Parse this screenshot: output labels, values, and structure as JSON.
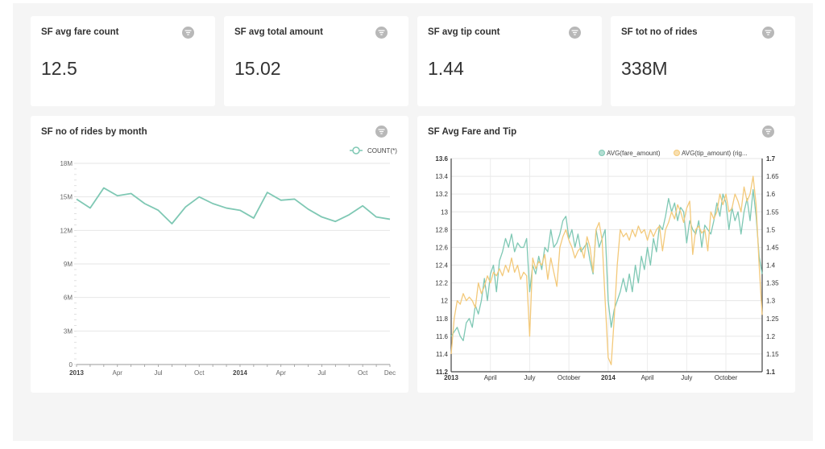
{
  "kpis": [
    {
      "title": "SF avg fare count",
      "value": "12.5"
    },
    {
      "title": "SF avg total amount",
      "value": "15.02"
    },
    {
      "title": "SF avg tip count",
      "value": "1.44"
    },
    {
      "title": "SF tot no of rides",
      "value": "338M"
    }
  ],
  "chart_data": [
    {
      "type": "line",
      "title": "SF no of rides by month",
      "xlabel": "",
      "ylabel": "",
      "legend": "top-right",
      "grid": true,
      "colors": {
        "COUNT(*)": "#7fc8b4"
      },
      "y_ticks": [
        "0",
        "3M",
        "6M",
        "9M",
        "12M",
        "15M",
        "18M"
      ],
      "ylim": [
        0,
        18000000
      ],
      "x_ticks": [
        {
          "label": "2013",
          "bold": true,
          "month": 0
        },
        {
          "label": "Apr",
          "bold": false,
          "month": 3
        },
        {
          "label": "Jul",
          "bold": false,
          "month": 6
        },
        {
          "label": "Oct",
          "bold": false,
          "month": 9
        },
        {
          "label": "2014",
          "bold": true,
          "month": 12
        },
        {
          "label": "Apr",
          "bold": false,
          "month": 15
        },
        {
          "label": "Jul",
          "bold": false,
          "month": 18
        },
        {
          "label": "Oct",
          "bold": false,
          "month": 21
        },
        {
          "label": "Dec",
          "bold": false,
          "month": 23
        }
      ],
      "series": [
        {
          "name": "COUNT(*)",
          "x": [
            "2013-01",
            "2013-02",
            "2013-03",
            "2013-04",
            "2013-05",
            "2013-06",
            "2013-07",
            "2013-08",
            "2013-09",
            "2013-10",
            "2013-11",
            "2013-12",
            "2014-01",
            "2014-02",
            "2014-03",
            "2014-04",
            "2014-05",
            "2014-06",
            "2014-07",
            "2014-08",
            "2014-09",
            "2014-10",
            "2014-11",
            "2014-12"
          ],
          "values": [
            14800000,
            14000000,
            15800000,
            15100000,
            15300000,
            14400000,
            13800000,
            12600000,
            14100000,
            15000000,
            14400000,
            14000000,
            13800000,
            13100000,
            15400000,
            14700000,
            14800000,
            13900000,
            13200000,
            12800000,
            13400000,
            14200000,
            13200000,
            13000000
          ]
        }
      ]
    },
    {
      "type": "line",
      "title": "SF Avg Fare and Tip",
      "xlabel": "",
      "ylabel": "",
      "legend": "top-right",
      "grid": true,
      "x_axis": {
        "start": "2013-01",
        "end": "2014-12",
        "unit": "week"
      },
      "x_ticks": [
        {
          "label": "2013",
          "bold": true,
          "week": 0
        },
        {
          "label": "April",
          "bold": false,
          "week": 13
        },
        {
          "label": "July",
          "bold": false,
          "week": 26
        },
        {
          "label": "October",
          "bold": false,
          "week": 39
        },
        {
          "label": "2014",
          "bold": true,
          "week": 52
        },
        {
          "label": "April",
          "bold": false,
          "week": 65
        },
        {
          "label": "July",
          "bold": false,
          "week": 78
        },
        {
          "label": "October",
          "bold": false,
          "week": 91
        }
      ],
      "y_left": {
        "ylim": [
          11.2,
          13.6
        ],
        "ticks": [
          "11.2",
          "11.4",
          "11.6",
          "11.8",
          "12",
          "12.2",
          "12.4",
          "12.6",
          "12.8",
          "13",
          "13.2",
          "13.4",
          "13.6"
        ]
      },
      "y_right": {
        "ylim": [
          1.1,
          1.7
        ],
        "ticks": [
          "1.1",
          "1.15",
          "1.2",
          "1.25",
          "1.3",
          "1.35",
          "1.4",
          "1.45",
          "1.5",
          "1.55",
          "1.6",
          "1.65",
          "1.7"
        ]
      },
      "series": [
        {
          "name": "AVG(fare_amount)",
          "axis": "left",
          "color": "#7fc8b4",
          "values": [
            11.6,
            11.65,
            11.7,
            11.6,
            11.55,
            11.75,
            11.8,
            11.7,
            11.95,
            11.85,
            12.0,
            12.25,
            12.0,
            12.3,
            12.4,
            12.1,
            12.45,
            12.55,
            12.7,
            12.6,
            12.75,
            12.55,
            12.65,
            12.6,
            12.6,
            12.7,
            12.1,
            12.4,
            12.3,
            12.5,
            12.35,
            12.6,
            12.55,
            12.8,
            12.6,
            12.65,
            12.75,
            12.9,
            12.95,
            12.7,
            12.8,
            12.6,
            12.75,
            12.55,
            12.6,
            12.65,
            12.45,
            12.3,
            12.8,
            12.6,
            12.7,
            12.8,
            12.0,
            11.7,
            11.9,
            12.0,
            12.1,
            12.25,
            12.1,
            12.3,
            12.1,
            12.4,
            12.2,
            12.5,
            12.35,
            12.6,
            12.4,
            12.7,
            12.55,
            12.85,
            12.8,
            12.95,
            13.15,
            13.0,
            13.1,
            12.9,
            13.05,
            13.0,
            12.65,
            12.9,
            12.8,
            12.75,
            12.9,
            12.6,
            12.85,
            12.8,
            12.75,
            12.9,
            13.1,
            12.95,
            13.2,
            13.1,
            12.8,
            13.05,
            12.9,
            13.0,
            12.75,
            13.0,
            13.15,
            12.9,
            13.25,
            12.95,
            12.5,
            12.3
          ]
        },
        {
          "name": "AVG(tip_amount) (rig...",
          "axis": "right",
          "color": "#f3c97a",
          "values": [
            1.15,
            1.25,
            1.3,
            1.29,
            1.32,
            1.3,
            1.31,
            1.3,
            1.28,
            1.35,
            1.32,
            1.34,
            1.37,
            1.35,
            1.38,
            1.37,
            1.39,
            1.37,
            1.4,
            1.38,
            1.42,
            1.38,
            1.4,
            1.36,
            1.38,
            1.37,
            1.2,
            1.42,
            1.39,
            1.41,
            1.4,
            1.43,
            1.36,
            1.42,
            1.38,
            1.34,
            1.45,
            1.48,
            1.5,
            1.47,
            1.45,
            1.42,
            1.44,
            1.45,
            1.42,
            1.48,
            1.45,
            1.38,
            1.5,
            1.52,
            1.47,
            1.3,
            1.14,
            1.12,
            1.25,
            1.4,
            1.5,
            1.48,
            1.49,
            1.47,
            1.5,
            1.48,
            1.51,
            1.49,
            1.5,
            1.47,
            1.5,
            1.48,
            1.5,
            1.51,
            1.44,
            1.5,
            1.52,
            1.55,
            1.53,
            1.57,
            1.55,
            1.52,
            1.56,
            1.58,
            1.43,
            1.5,
            1.51,
            1.49,
            1.5,
            1.44,
            1.55,
            1.53,
            1.55,
            1.6,
            1.57,
            1.6,
            1.55,
            1.56,
            1.6,
            1.58,
            1.55,
            1.62,
            1.58,
            1.6,
            1.65,
            1.57,
            1.4,
            1.26
          ]
        }
      ]
    }
  ]
}
